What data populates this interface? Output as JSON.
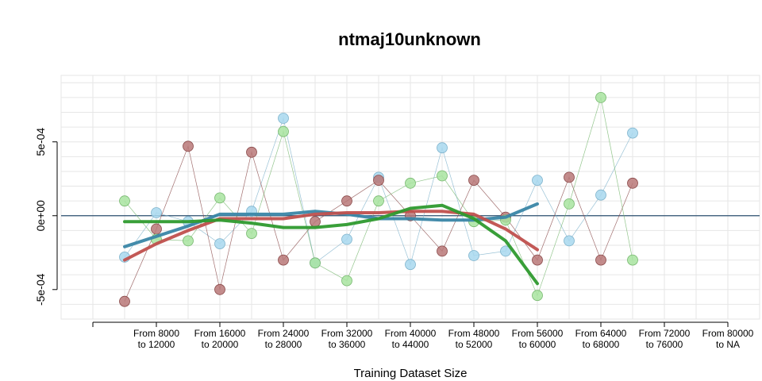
{
  "chart_data": {
    "type": "scatter",
    "title": "ntmaj10unknown",
    "xlabel": "Training Dataset Size",
    "ylabel": "",
    "grid": true,
    "x_ticks": [
      {
        "x": 1,
        "label": ""
      },
      {
        "x": 3,
        "label": "From 8000\nto 12000"
      },
      {
        "x": 5,
        "label": "From 16000\nto 20000"
      },
      {
        "x": 7,
        "label": "From 24000\nto 28000"
      },
      {
        "x": 9,
        "label": "From 32000\nto 36000"
      },
      {
        "x": 11,
        "label": "From 40000\nto 44000"
      },
      {
        "x": 13,
        "label": "From 48000\nto 52000"
      },
      {
        "x": 15,
        "label": "From 56000\nto 60000"
      },
      {
        "x": 17,
        "label": "From 64000\nto 68000"
      },
      {
        "x": 19,
        "label": "From 72000\nto 76000"
      },
      {
        "x": 21,
        "label": "From 80000\nto NA"
      }
    ],
    "y_ticks": [
      {
        "y": -0.0005,
        "label": "-5e-04"
      },
      {
        "y": 0,
        "label": "0e+00"
      },
      {
        "y": 0.0005,
        "label": "5e-04"
      }
    ],
    "xlim": [
      0.0,
      22.0
    ],
    "ylim": [
      -0.0007,
      0.00095
    ],
    "reference_line": 0,
    "series": [
      {
        "color": "#a8d8ee",
        "stroke": "#7fb3cc",
        "smooth_color": "#3a86a6",
        "points": [
          [
            2,
            -0.00028
          ],
          [
            3,
            2e-05
          ],
          [
            4,
            -4e-05
          ],
          [
            5,
            -0.00019
          ],
          [
            6,
            3e-05
          ],
          [
            7,
            0.00066
          ],
          [
            8,
            -0.00032
          ],
          [
            9,
            -0.00016
          ],
          [
            10,
            0.00026
          ],
          [
            11,
            -0.00033
          ],
          [
            12,
            0.00046
          ],
          [
            13,
            -0.00027
          ],
          [
            14,
            -0.00024
          ],
          [
            15,
            0.00024
          ],
          [
            16,
            -0.00017
          ],
          [
            17,
            0.00014
          ],
          [
            18,
            0.00056
          ]
        ],
        "smooth": [
          [
            2,
            -0.00021
          ],
          [
            3,
            -0.00014
          ],
          [
            4,
            -7e-05
          ],
          [
            5,
            1e-05
          ],
          [
            6,
            1e-05
          ],
          [
            7,
            1e-05
          ],
          [
            8,
            3e-05
          ],
          [
            9,
            1e-05
          ],
          [
            10,
            -2e-05
          ],
          [
            11,
            -2e-05
          ],
          [
            12,
            -3e-05
          ],
          [
            13,
            -3e-05
          ],
          [
            14,
            -1e-05
          ],
          [
            15,
            8e-05
          ]
        ]
      },
      {
        "color": "#b87878",
        "stroke": "#8a4a4a",
        "smooth_color": "#c0504d",
        "points": [
          [
            2,
            -0.00058
          ],
          [
            3,
            -9e-05
          ],
          [
            4,
            0.00047
          ],
          [
            5,
            -0.0005
          ],
          [
            6,
            0.00043
          ],
          [
            7,
            -0.0003
          ],
          [
            8,
            -4e-05
          ],
          [
            9,
            0.0001
          ],
          [
            10,
            0.00024
          ],
          [
            11,
            0.0
          ],
          [
            12,
            -0.00024
          ],
          [
            13,
            0.00024
          ],
          [
            14,
            -1e-05
          ],
          [
            15,
            -0.0003
          ],
          [
            16,
            0.00026
          ],
          [
            17,
            -0.0003
          ],
          [
            18,
            0.00022
          ]
        ],
        "smooth": [
          [
            2,
            -0.0003
          ],
          [
            3,
            -0.00019
          ],
          [
            4,
            -0.0001
          ],
          [
            5,
            -2e-05
          ],
          [
            6,
            -2e-05
          ],
          [
            7,
            -2e-05
          ],
          [
            8,
            1e-05
          ],
          [
            9,
            2e-05
          ],
          [
            10,
            2e-05
          ],
          [
            11,
            3e-05
          ],
          [
            12,
            3e-05
          ],
          [
            13,
            1e-05
          ],
          [
            14,
            -9e-05
          ],
          [
            15,
            -0.00023
          ]
        ]
      },
      {
        "color": "#a8e4a0",
        "stroke": "#78b870",
        "smooth_color": "#2e9a2e",
        "points": [
          [
            2,
            0.0001
          ],
          [
            3,
            -0.00016
          ],
          [
            4,
            -0.00017
          ],
          [
            5,
            0.00012
          ],
          [
            6,
            -0.00012
          ],
          [
            7,
            0.00057
          ],
          [
            8,
            -0.00032
          ],
          [
            9,
            -0.00044
          ],
          [
            10,
            0.0001
          ],
          [
            11,
            0.00022
          ],
          [
            12,
            0.00027
          ],
          [
            13,
            -4e-05
          ],
          [
            14,
            -3e-05
          ],
          [
            15,
            -0.00054
          ],
          [
            16,
            8e-05
          ],
          [
            17,
            0.0008
          ],
          [
            18,
            -0.0003
          ]
        ],
        "smooth": [
          [
            2,
            -4e-05
          ],
          [
            3,
            -4e-05
          ],
          [
            4,
            -4e-05
          ],
          [
            5,
            -3e-05
          ],
          [
            6,
            -5e-05
          ],
          [
            7,
            -8e-05
          ],
          [
            8,
            -8e-05
          ],
          [
            9,
            -6e-05
          ],
          [
            10,
            -2e-05
          ],
          [
            11,
            5e-05
          ],
          [
            12,
            7e-05
          ],
          [
            13,
            -2e-05
          ],
          [
            14,
            -0.00017
          ],
          [
            15,
            -0.00046
          ]
        ]
      }
    ]
  }
}
